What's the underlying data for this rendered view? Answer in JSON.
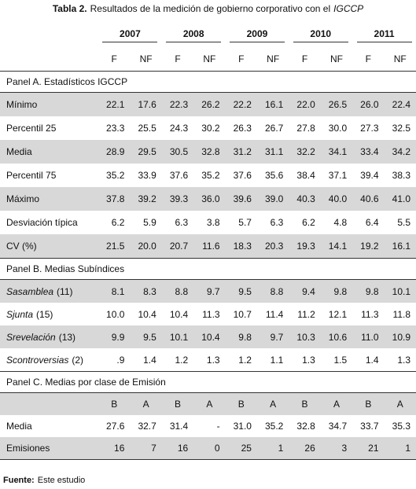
{
  "title": {
    "label": "Tabla 2.",
    "text": "Resultados de la medición de gobierno corporativo con el",
    "emphasis": "IGCCP"
  },
  "table": {
    "years": [
      "2007",
      "2008",
      "2009",
      "2010",
      "2011"
    ],
    "subheaders": [
      "F",
      "NF",
      "F",
      "NF",
      "F",
      "NF",
      "F",
      "NF",
      "F",
      "NF"
    ],
    "panels": [
      {
        "title": "Panel A. Estadísticos IGCCP",
        "rows": [
          {
            "label": "Mínimo",
            "values": [
              "22.1",
              "17.6",
              "22.3",
              "26.2",
              "22.2",
              "16.1",
              "22.0",
              "26.5",
              "26.0",
              "22.4"
            ]
          },
          {
            "label": "Percentil 25",
            "values": [
              "23.3",
              "25.5",
              "24.3",
              "30.2",
              "26.3",
              "26.7",
              "27.8",
              "30.0",
              "27.3",
              "32.5"
            ]
          },
          {
            "label": "Media",
            "values": [
              "28.9",
              "29.5",
              "30.5",
              "32.8",
              "31.2",
              "31.1",
              "32.2",
              "34.1",
              "33.4",
              "34.2"
            ]
          },
          {
            "label": "Percentil 75",
            "values": [
              "35.2",
              "33.9",
              "37.6",
              "35.2",
              "37.6",
              "35.6",
              "38.4",
              "37.1",
              "39.4",
              "38.3"
            ]
          },
          {
            "label": "Máximo",
            "values": [
              "37.8",
              "39.2",
              "39.3",
              "36.0",
              "39.6",
              "39.0",
              "40.3",
              "40.0",
              "40.6",
              "41.0"
            ]
          },
          {
            "label": "Desviación típica",
            "values": [
              "6.2",
              "5.9",
              "6.3",
              "3.8",
              "5.7",
              "6.3",
              "6.2",
              "4.8",
              "6.4",
              "5.5"
            ]
          },
          {
            "label": "CV (%)",
            "values": [
              "21.5",
              "20.0",
              "20.7",
              "11.6",
              "18.3",
              "20.3",
              "19.3",
              "14.1",
              "19.2",
              "16.1"
            ]
          }
        ]
      },
      {
        "title": "Panel B. Medias Subíndices",
        "rows": [
          {
            "label": "Sasamblea",
            "note": "(11)",
            "values": [
              "8.1",
              "8.3",
              "8.8",
              "9.7",
              "9.5",
              "8.8",
              "9.4",
              "9.8",
              "9.8",
              "10.1"
            ]
          },
          {
            "label": "Sjunta",
            "note": "(15)",
            "values": [
              "10.0",
              "10.4",
              "10.4",
              "11.3",
              "10.7",
              "11.4",
              "11.2",
              "12.1",
              "11.3",
              "11.8"
            ]
          },
          {
            "label": "Srevelación",
            "note": "(13)",
            "values": [
              "9.9",
              "9.5",
              "10.1",
              "10.4",
              "9.8",
              "9.7",
              "10.3",
              "10.6",
              "11.0",
              "10.9"
            ]
          },
          {
            "label": "Scontroversias",
            "note": "(2)",
            "values": [
              ".9",
              "1.4",
              "1.2",
              "1.3",
              "1.2",
              "1.1",
              "1.3",
              "1.5",
              "1.4",
              "1.3"
            ]
          }
        ]
      },
      {
        "title": "Panel C. Medias por clase de Emisión",
        "subheaders": [
          "B",
          "A",
          "B",
          "A",
          "B",
          "A",
          "B",
          "A",
          "B",
          "A"
        ],
        "rows": [
          {
            "label": "Media",
            "values": [
              "27.6",
              "32.7",
              "31.4",
              "-",
              "31.0",
              "35.2",
              "32.8",
              "34.7",
              "33.7",
              "35.3"
            ]
          },
          {
            "label": "Emisiones",
            "values": [
              "16",
              "7",
              "16",
              "0",
              "25",
              "1",
              "26",
              "3",
              "21",
              "1"
            ]
          }
        ]
      }
    ]
  },
  "footer": {
    "label": "Fuente:",
    "text": "Este estudio"
  }
}
